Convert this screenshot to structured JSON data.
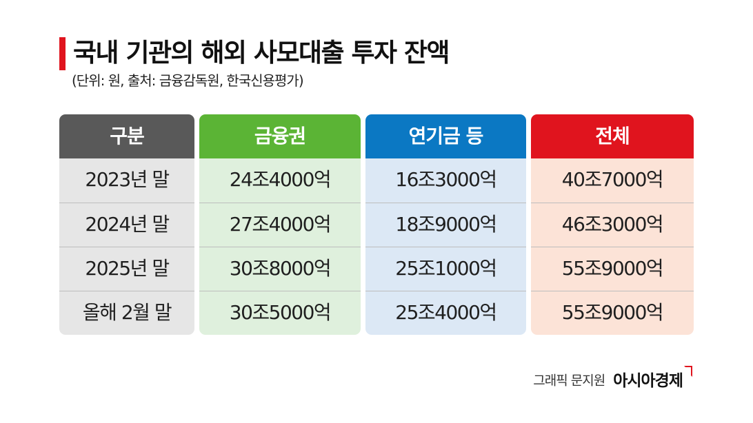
{
  "title": "국내 기관의 해외 사모대출 투자 잔액",
  "subtitle": "(단위: 원, 출처: 금융감독원, 한국신용평가)",
  "colors": {
    "title_accent": "#e0141e",
    "header_category": "#595959",
    "header_finance": "#5bb435",
    "header_pension": "#0b78c3",
    "header_total": "#e0141e",
    "body_category": "#e6e6e6",
    "body_finance": "#dff0dd",
    "body_pension": "#dce8f5",
    "body_total": "#fce3d7"
  },
  "table": {
    "columns": [
      {
        "header": "구분",
        "cells": [
          "2023년 말",
          "2024년 말",
          "2025년 말",
          "올해 2월 말"
        ]
      },
      {
        "header": "금융권",
        "cells": [
          "24조4000억",
          "27조4000억",
          "30조8000억",
          "30조5000억"
        ]
      },
      {
        "header": "연기금 등",
        "cells": [
          "16조3000억",
          "18조9000억",
          "25조1000억",
          "25조4000억"
        ]
      },
      {
        "header": "전체",
        "cells": [
          "40조7000억",
          "46조3000억",
          "55조9000억",
          "55조9000억"
        ]
      }
    ]
  },
  "credit": {
    "text": "그래픽 문지원",
    "brand": "아시아경제"
  }
}
